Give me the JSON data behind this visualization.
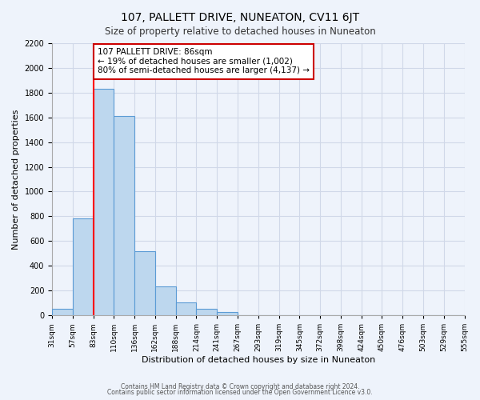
{
  "title": "107, PALLETT DRIVE, NUNEATON, CV11 6JT",
  "subtitle": "Size of property relative to detached houses in Nuneaton",
  "xlabel": "Distribution of detached houses by size in Nuneaton",
  "ylabel": "Number of detached properties",
  "bar_values": [
    50,
    780,
    1830,
    1610,
    520,
    230,
    105,
    55,
    25,
    0,
    0,
    0,
    0,
    0,
    0,
    0,
    0,
    0,
    0,
    0
  ],
  "bin_labels": [
    "31sqm",
    "57sqm",
    "83sqm",
    "110sqm",
    "136sqm",
    "162sqm",
    "188sqm",
    "214sqm",
    "241sqm",
    "267sqm",
    "293sqm",
    "319sqm",
    "345sqm",
    "372sqm",
    "398sqm",
    "424sqm",
    "450sqm",
    "476sqm",
    "503sqm",
    "529sqm",
    "555sqm"
  ],
  "bar_color": "#bdd7ee",
  "bar_edge_color": "#5b9bd5",
  "grid_color": "#d0d8e8",
  "background_color": "#eef3fb",
  "red_line_x": 2,
  "annotation_text": "107 PALLETT DRIVE: 86sqm\n← 19% of detached houses are smaller (1,002)\n80% of semi-detached houses are larger (4,137) →",
  "annotation_box_color": "#ffffff",
  "annotation_box_edge": "#cc0000",
  "ylim": [
    0,
    2200
  ],
  "yticks": [
    0,
    200,
    400,
    600,
    800,
    1000,
    1200,
    1400,
    1600,
    1800,
    2000,
    2200
  ],
  "footer_line1": "Contains HM Land Registry data © Crown copyright and database right 2024.",
  "footer_line2": "Contains public sector information licensed under the Open Government Licence v3.0."
}
